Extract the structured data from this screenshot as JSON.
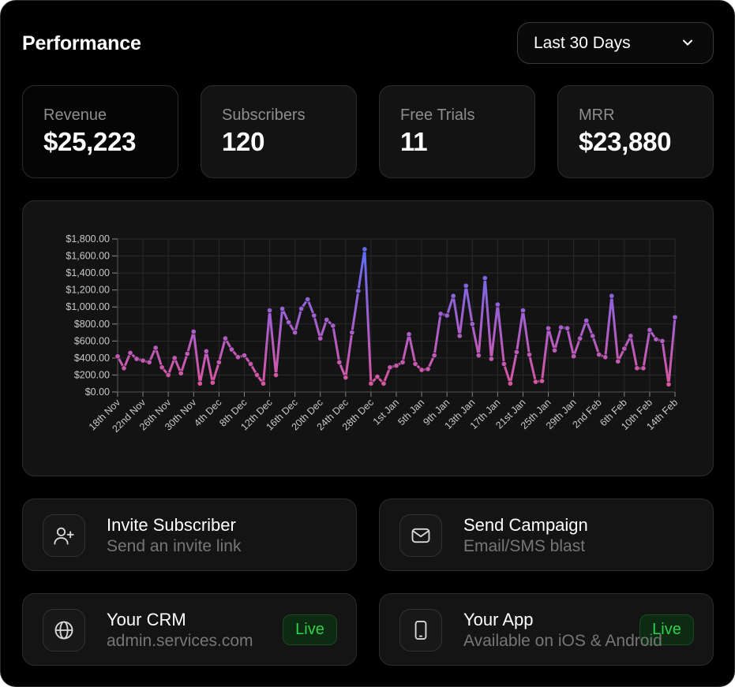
{
  "header": {
    "title": "Performance",
    "range_select": {
      "value": "Last 30 Days"
    }
  },
  "stats": [
    {
      "label": "Revenue",
      "value": "$25,223"
    },
    {
      "label": "Subscribers",
      "value": "120"
    },
    {
      "label": "Free Trials",
      "value": "11"
    },
    {
      "label": "MRR",
      "value": "$23,880"
    }
  ],
  "actions": {
    "invite": {
      "title": "Invite Subscriber",
      "subtitle": "Send an invite link"
    },
    "campaign": {
      "title": "Send Campaign",
      "subtitle": "Email/SMS blast"
    },
    "crm": {
      "title": "Your CRM",
      "subtitle": "admin.services.com",
      "badge": "Live"
    },
    "app": {
      "title": "Your App",
      "subtitle": "Available on iOS & Android",
      "badge": "Live"
    }
  },
  "colors": {
    "background": "#000000",
    "card": "#131313",
    "line_top": "#5b6cf0",
    "line_bottom": "#e0559a",
    "live_green": "#2fd24a"
  },
  "chart_data": {
    "type": "line",
    "title": "",
    "xlabel": "",
    "ylabel": "",
    "ylim": [
      0,
      1800
    ],
    "y_ticks": [
      "$0.00",
      "$200.00",
      "$400.00",
      "$600.00",
      "$800.00",
      "$1,000.00",
      "$1,200.00",
      "$1,400.00",
      "$1,600.00",
      "$1,800.00"
    ],
    "x_tick_labels": [
      "18th Nov",
      "22nd Nov",
      "26th Nov",
      "30th Nov",
      "4th Dec",
      "8th Dec",
      "12th Dec",
      "16th Dec",
      "20th Dec",
      "24th Dec",
      "28th Dec",
      "1st Jan",
      "5th Jan",
      "9th Jan",
      "13th Jan",
      "17th Jan",
      "21st Jan",
      "25th Jan",
      "29th Jan",
      "2nd Feb",
      "6th Feb",
      "10th Feb",
      "14th Feb"
    ],
    "x_start": "18th Nov",
    "x_step_days": 1,
    "series": [
      {
        "name": "Revenue",
        "values": [
          420,
          280,
          460,
          390,
          370,
          350,
          520,
          290,
          200,
          400,
          220,
          450,
          710,
          100,
          480,
          110,
          350,
          630,
          500,
          410,
          430,
          330,
          200,
          100,
          960,
          200,
          980,
          820,
          700,
          980,
          1090,
          900,
          630,
          850,
          780,
          350,
          170,
          700,
          1190,
          1680,
          100,
          180,
          100,
          290,
          310,
          350,
          680,
          330,
          260,
          270,
          430,
          920,
          900,
          1130,
          660,
          1250,
          800,
          430,
          1340,
          390,
          1030,
          330,
          100,
          470,
          960,
          440,
          120,
          130,
          750,
          490,
          760,
          750,
          420,
          630,
          840,
          660,
          440,
          410,
          1130,
          360,
          510,
          660,
          280,
          280,
          730,
          620,
          600,
          90,
          880
        ]
      }
    ]
  }
}
